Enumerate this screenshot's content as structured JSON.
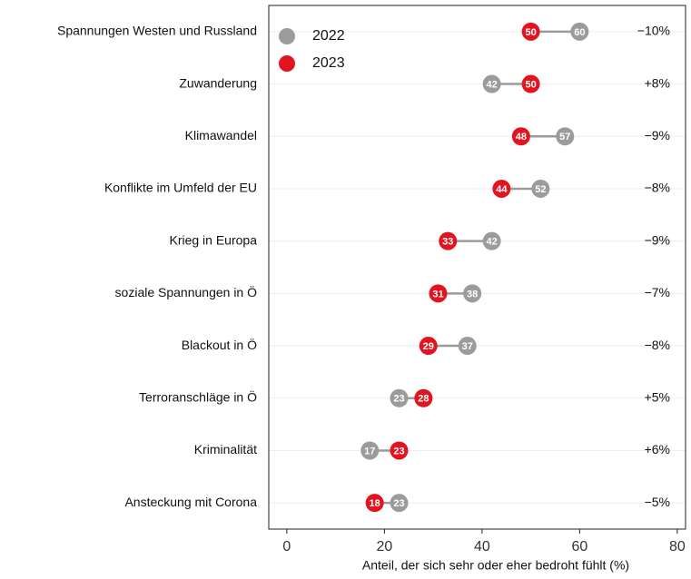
{
  "chart_data": {
    "type": "dumbbell",
    "x_label": "Anteil, der sich sehr oder eher bedroht fühlt (%)",
    "categories": [
      "Spannungen Westen und Russland",
      "Zuwanderung",
      "Klimawandel",
      "Konflikte im Umfeld der EU",
      "Krieg in Europa",
      "soziale Spannungen in Ö",
      "Blackout in Ö",
      "Terroranschläge in Ö",
      "Kriminalität",
      "Ansteckung mit Corona"
    ],
    "series": [
      {
        "name": "2022",
        "color": "#9b9b9b",
        "values": [
          60,
          42,
          57,
          52,
          42,
          38,
          37,
          23,
          17,
          23
        ]
      },
      {
        "name": "2023",
        "color": "#e1141f",
        "values": [
          50,
          50,
          48,
          44,
          33,
          31,
          29,
          28,
          23,
          18
        ]
      }
    ],
    "change_labels": [
      "−10%",
      "+8%",
      "−9%",
      "−8%",
      "−9%",
      "−7%",
      "−8%",
      "+5%",
      "+6%",
      "−5%"
    ],
    "xlim": [
      -3.7,
      81.7
    ],
    "xticks": [
      0,
      20,
      40,
      60,
      80
    ],
    "grid": true,
    "legend": "upper left"
  }
}
